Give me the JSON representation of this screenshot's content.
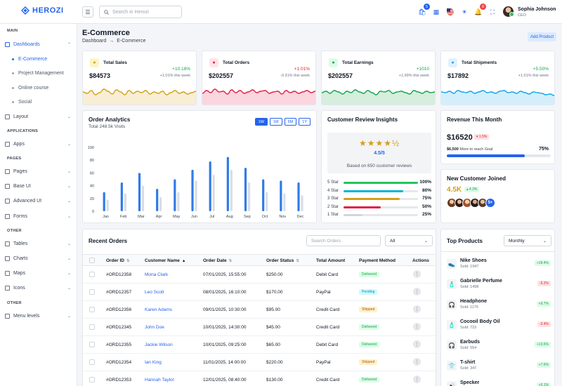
{
  "brand": {
    "name": "HEROZI"
  },
  "topbar": {
    "search_placeholder": "Search in Herozi",
    "cart_count": "5",
    "notif_count": "8",
    "user_name": "Sophia Johnson",
    "user_role": "CEO"
  },
  "sidebar": {
    "sections": {
      "main": "MAIN",
      "applications": "APPLICATIONS",
      "pages": "PAGES",
      "other1": "OTHER",
      "other2": "OTHER"
    },
    "dashboards": "Dashboards",
    "subs": [
      "E-Commerce",
      "Project Management",
      "Online course",
      "Social"
    ],
    "layout": "Layout",
    "apps": "Apps",
    "pages_items": [
      "Pages",
      "Base UI",
      "Advanced UI",
      "Forms"
    ],
    "other_items": [
      "Tables",
      "Charts",
      "Maps",
      "Icons"
    ],
    "menu_levels": "Menu levels"
  },
  "page": {
    "title": "E-Commerce",
    "crumb1": "Dashboard",
    "crumb_sep": "→",
    "crumb2": "E-Commerce",
    "add_product": "Add Product"
  },
  "stats": [
    {
      "label": "Total Sales",
      "value": "$84573",
      "change": "+10.18%",
      "week": "+1.01% this week",
      "color": "#d4a017",
      "bg": "#fef3c7",
      "icon": "dollar-icon",
      "neg": false
    },
    {
      "label": "Total Orders",
      "value": "$202557",
      "change": "+1.01%",
      "week": "-0.31% this week",
      "color": "#e11d48",
      "bg": "#ffe4e6",
      "icon": "box-icon",
      "neg": true
    },
    {
      "label": "Total Earnings",
      "value": "$202557",
      "change": "+1010",
      "week": "+1.99% this week",
      "color": "#16a34a",
      "bg": "#dcfce7",
      "icon": "wallet-icon",
      "neg": false
    },
    {
      "label": "Total Shipments",
      "value": "$17892",
      "change": "+5.50%",
      "week": "+1.01% this week",
      "color": "#0ea5e9",
      "bg": "#e0f2fe",
      "icon": "truck-icon",
      "neg": false
    }
  ],
  "analytics": {
    "title": "Order Analytics",
    "subtitle": "Total 248.5k Visits",
    "ranges": [
      "1W",
      "1M",
      "6M",
      "1Y"
    ]
  },
  "chart_data": {
    "type": "bar",
    "categories": [
      "Jan",
      "Feb",
      "Mar",
      "Apr",
      "May",
      "Jun",
      "Jul",
      "Aug",
      "Sep",
      "Oct",
      "Nov",
      "Dec"
    ],
    "series": [
      {
        "values": [
          30,
          45,
          60,
          35,
          50,
          65,
          78,
          85,
          68,
          50,
          48,
          45
        ],
        "color": "#2f7be8"
      },
      {
        "values": [
          18,
          28,
          40,
          22,
          30,
          48,
          57,
          65,
          45,
          30,
          28,
          25
        ],
        "color": "#d9dde5"
      }
    ],
    "yticks": [
      0,
      20,
      40,
      60,
      80,
      100
    ],
    "ylim": [
      0,
      100
    ]
  },
  "reviews": {
    "title": "Customer Review Insights",
    "stars": "★★★★½",
    "score": "4.5/5",
    "based": "Based on 650 customer reviews",
    "rows": [
      {
        "label": "5 Star",
        "pct": "100%",
        "value": 100,
        "color": "#22c55e"
      },
      {
        "label": "4 Star",
        "pct": "80%",
        "value": 80,
        "color": "#06b6d4"
      },
      {
        "label": "3 Star",
        "pct": "75%",
        "value": 75,
        "color": "#d4a017"
      },
      {
        "label": "2 Star",
        "pct": "50%",
        "value": 50,
        "color": "#e11d48"
      },
      {
        "label": "1 Star",
        "pct": "25%",
        "value": 25,
        "color": "#d1d5db"
      }
    ]
  },
  "revenue": {
    "title": "Revenue This Month",
    "value": "$16520",
    "badge": "▾ 1.5%",
    "goal_amount": "$6,500",
    "goal_text": "More to reach Goal",
    "pct": "75%",
    "progress": 75
  },
  "customers": {
    "title": "New Customer Joined",
    "value": "4.5K",
    "badge": "▴ 4.3%",
    "more": "5+"
  },
  "orders": {
    "title": "Recent Orders",
    "search_placeholder": "Search Orders",
    "filter": "All",
    "headers": [
      "Order ID",
      "Customer Name",
      "Order Date",
      "Order Status",
      "Total Amount",
      "Payment Method",
      "Actions"
    ],
    "rows": [
      {
        "id": "#ORD12358",
        "name": "Mona Clark",
        "date": "07/01/2025, 15:55:00",
        "status": "$250.00",
        "method": "Debit Card",
        "pay": "Delivered"
      },
      {
        "id": "#ORD12357",
        "name": "Leo Scott",
        "date": "08/01/2025, 16:10:00",
        "status": "$170.00",
        "method": "PayPal",
        "pay": "Pending"
      },
      {
        "id": "#ORD12356",
        "name": "Karen Adams",
        "date": "09/01/2025, 10:30:00",
        "status": "$95.00",
        "method": "Credit Card",
        "pay": "Shipped"
      },
      {
        "id": "#ORD12345",
        "name": "John Doe",
        "date": "10/01/2025, 14:30:00",
        "status": "$45.00",
        "method": "Credit Card",
        "pay": "Delivered"
      },
      {
        "id": "#ORD12355",
        "name": "Jackie Wilson",
        "date": "10/01/2025, 09:25:00",
        "status": "$65.00",
        "method": "Debit Card",
        "pay": "Delivered"
      },
      {
        "id": "#ORD12354",
        "name": "Ian King",
        "date": "11/01/2025, 14:00:00",
        "status": "$220.00",
        "method": "PayPal",
        "pay": "Shipped"
      },
      {
        "id": "#ORD12353",
        "name": "Hannah Taylor",
        "date": "12/01/2025, 08:40:00",
        "status": "$130.00",
        "method": "Credit Card",
        "pay": "Delivered"
      }
    ]
  },
  "top_products": {
    "title": "Top Products",
    "filter": "Monthly",
    "items": [
      {
        "name": "Nike Shoes",
        "sold": "Sold: 1947",
        "badge": "+18.4%",
        "dir": "up",
        "icon": "👟"
      },
      {
        "name": "Gabrielle Perfume",
        "sold": "Sold: 1498",
        "badge": "-5.2%",
        "dir": "down",
        "icon": "🧴"
      },
      {
        "name": "Headphone",
        "sold": "Sold: 1176",
        "badge": "+9.7%",
        "dir": "up",
        "icon": "🎧"
      },
      {
        "name": "Cocooil Body Oil",
        "sold": "Sold: 723",
        "badge": "-3.4%",
        "dir": "down",
        "icon": "🧴"
      },
      {
        "name": "Earbuds",
        "sold": "Sold: 554",
        "badge": "+13.6%",
        "dir": "up",
        "icon": "🎧"
      },
      {
        "name": "T-shirt",
        "sold": "Sold: 347",
        "badge": "+7.6%",
        "dir": "up",
        "icon": "👕"
      },
      {
        "name": "Specker",
        "sold": "",
        "badge": "+5.1%",
        "dir": "up",
        "icon": "🔊"
      }
    ]
  }
}
